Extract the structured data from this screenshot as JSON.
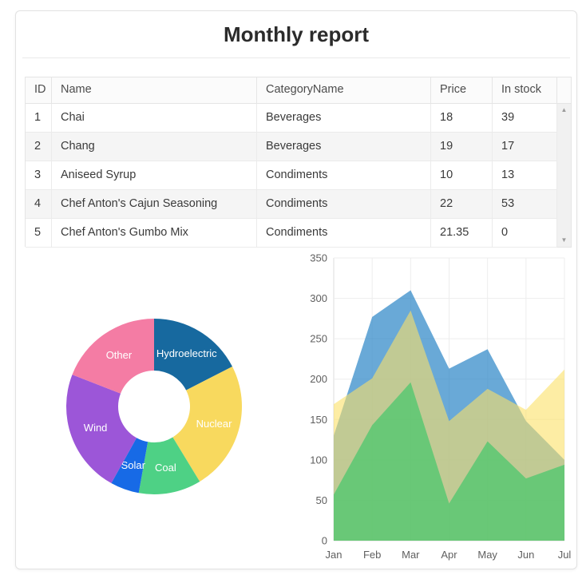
{
  "title": "Monthly report",
  "table": {
    "columns": [
      "ID",
      "Name",
      "CategoryName",
      "Price",
      "In stock"
    ],
    "rows": [
      [
        "1",
        "Chai",
        "Beverages",
        "18",
        "39"
      ],
      [
        "2",
        "Chang",
        "Beverages",
        "19",
        "17"
      ],
      [
        "3",
        "Aniseed Syrup",
        "Condiments",
        "10",
        "13"
      ],
      [
        "4",
        "Chef Anton's Cajun Seasoning",
        "Condiments",
        "22",
        "53"
      ],
      [
        "5",
        "Chef Anton's Gumbo Mix",
        "Condiments",
        "21.35",
        "0"
      ]
    ]
  },
  "scrollbar": {
    "up": "▲",
    "down": "▼"
  },
  "chart_data": [
    {
      "type": "pie",
      "subtype": "donut",
      "labels": [
        "Hydroelectric",
        "Nuclear",
        "Coal",
        "Solar",
        "Wind",
        "Other"
      ],
      "values_pct": [
        17.5,
        23.8,
        11.5,
        5.3,
        22.8,
        19.1
      ],
      "colors": [
        "#17699f",
        "#f8d95e",
        "#4ed185",
        "#176ae6",
        "#9c56d8",
        "#f47ca4"
      ],
      "start_angle_deg": 0,
      "direction": "clockwise",
      "label_color": "#ffffff",
      "legend_position": "none"
    },
    {
      "type": "area",
      "x": [
        "Jan",
        "Feb",
        "Mar",
        "Apr",
        "May",
        "Jun",
        "Jul"
      ],
      "series": [
        {
          "name": "series-blue",
          "color": "rgba(42,133,198,0.7)",
          "values": [
            130,
            277,
            310,
            213,
            237,
            148,
            100
          ]
        },
        {
          "name": "series-yellow",
          "color": "rgba(251,225,103,0.6)",
          "values": [
            169,
            201,
            285,
            148,
            188,
            162,
            212
          ]
        },
        {
          "name": "series-green",
          "color": "rgba(82,199,111,0.8)",
          "values": [
            57,
            143,
            196,
            46,
            123,
            77,
            94
          ]
        }
      ],
      "ylim": [
        0,
        350
      ],
      "yticks": [
        0,
        50,
        100,
        150,
        200,
        250,
        300,
        350
      ],
      "grid": true,
      "legend_position": "none",
      "xlabel": "",
      "ylabel": ""
    }
  ]
}
